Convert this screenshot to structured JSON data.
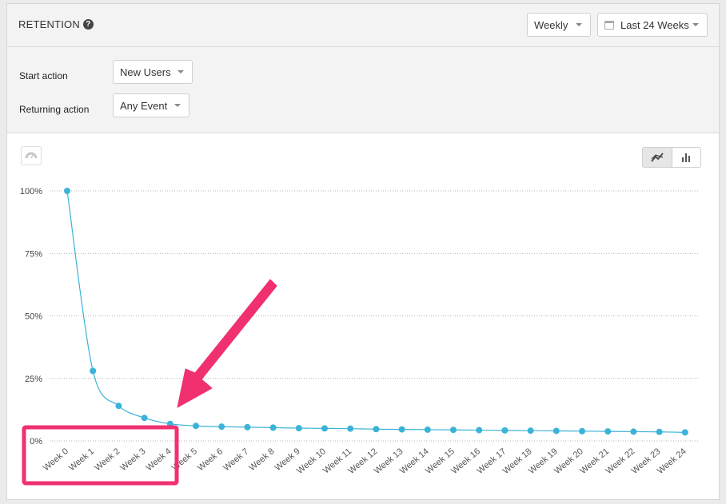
{
  "header": {
    "title": "RETENTION",
    "help_glyph": "?",
    "interval_select": "Weekly",
    "range_select": "Last 24 Weeks"
  },
  "filters": {
    "start_label": "Start action",
    "start_value": "New Users",
    "returning_label": "Returning action",
    "returning_value": "Any Event"
  },
  "icons": {
    "help": "question-circle-icon",
    "calendar": "calendar-icon",
    "dashboard": "dashboard-gauge-icon",
    "line_toggle": "line-chart-icon",
    "bar_toggle": "bar-chart-icon"
  },
  "colors": {
    "series": "#3bb3d9",
    "highlight": "#f0306f"
  },
  "chart_data": {
    "type": "line",
    "title": "",
    "xlabel": "",
    "ylabel": "",
    "ylim": [
      0,
      100
    ],
    "y_ticks": [
      "0%",
      "25%",
      "50%",
      "75%",
      "100%"
    ],
    "y_tick_values": [
      0,
      25,
      50,
      75,
      100
    ],
    "grid": true,
    "categories": [
      "Week 0",
      "Week 1",
      "Week 2",
      "Week 3",
      "Week 4",
      "Week 5",
      "Week 6",
      "Week 7",
      "Week 8",
      "Week 9",
      "Week 10",
      "Week 11",
      "Week 12",
      "Week 13",
      "Week 14",
      "Week 15",
      "Week 16",
      "Week 17",
      "Week 18",
      "Week 19",
      "Week 20",
      "Week 21",
      "Week 22",
      "Week 23",
      "Week 24"
    ],
    "series": [
      {
        "values": [
          100,
          28,
          14,
          9.2,
          6.8,
          6,
          5.7,
          5.5,
          5.3,
          5.1,
          5,
          4.9,
          4.7,
          4.6,
          4.5,
          4.4,
          4.3,
          4.2,
          4.1,
          4,
          3.9,
          3.8,
          3.7,
          3.6,
          3.4
        ]
      }
    ]
  }
}
